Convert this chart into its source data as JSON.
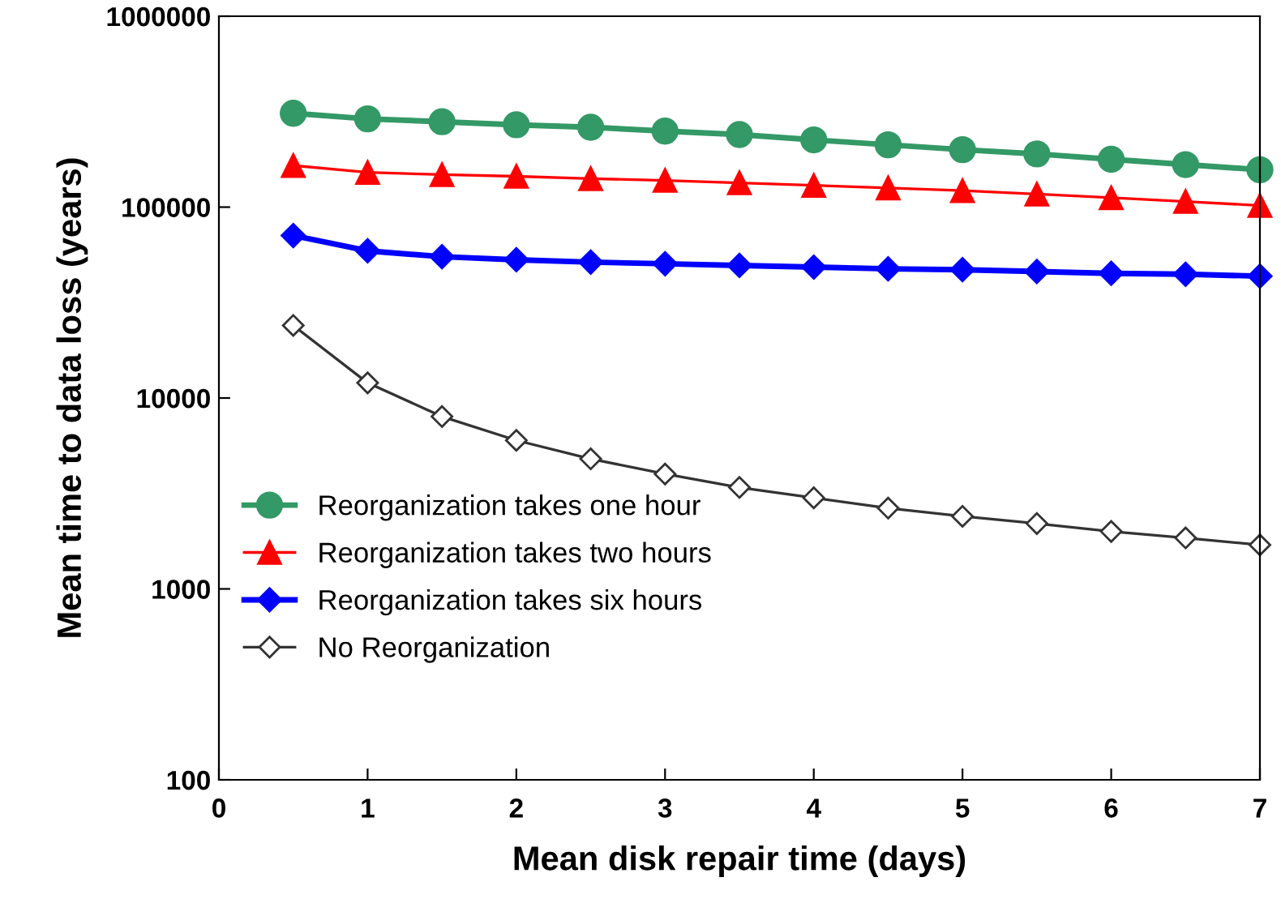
{
  "chart_data": {
    "type": "line",
    "xlabel": "Mean disk repair time (days)",
    "ylabel": "Mean time to data loss (years)",
    "x": [
      0.5,
      1,
      1.5,
      2,
      2.5,
      3,
      3.5,
      4,
      4.5,
      5,
      5.5,
      6,
      6.5,
      7
    ],
    "series": [
      {
        "name": "Reorganization takes one hour",
        "color": "#339966",
        "marker": "circle",
        "values": [
          310000,
          290000,
          280000,
          270000,
          262000,
          250000,
          240000,
          225000,
          212000,
          200000,
          190000,
          178000,
          167000,
          157000
        ]
      },
      {
        "name": "Reorganization takes two hours",
        "color": "#ff0000",
        "marker": "triangle",
        "values": [
          165000,
          152000,
          148000,
          145000,
          141000,
          138000,
          134000,
          130000,
          126000,
          122000,
          117000,
          112000,
          107000,
          102000
        ]
      },
      {
        "name": "Reorganization takes six hours",
        "color": "#0000ff",
        "marker": "diamond",
        "values": [
          71000,
          59000,
          55000,
          53000,
          51500,
          50500,
          49500,
          48500,
          47500,
          47000,
          46000,
          45000,
          44500,
          43500
        ]
      },
      {
        "name": "No Reorganization",
        "color": "#333333",
        "marker": "diamond",
        "values": [
          24000,
          12000,
          8000,
          6000,
          4800,
          4000,
          3400,
          3000,
          2650,
          2400,
          2200,
          2000,
          1850,
          1700
        ]
      }
    ],
    "log": "y",
    "xlim": [
      0,
      7
    ],
    "xticks": [
      0,
      1,
      2,
      3,
      4,
      5,
      6,
      7
    ],
    "ylim": [
      100,
      1000000
    ],
    "yticks": [
      100,
      1000,
      10000,
      100000,
      1000000
    ],
    "grid": false,
    "legend": "left",
    "line_style": "solid"
  }
}
